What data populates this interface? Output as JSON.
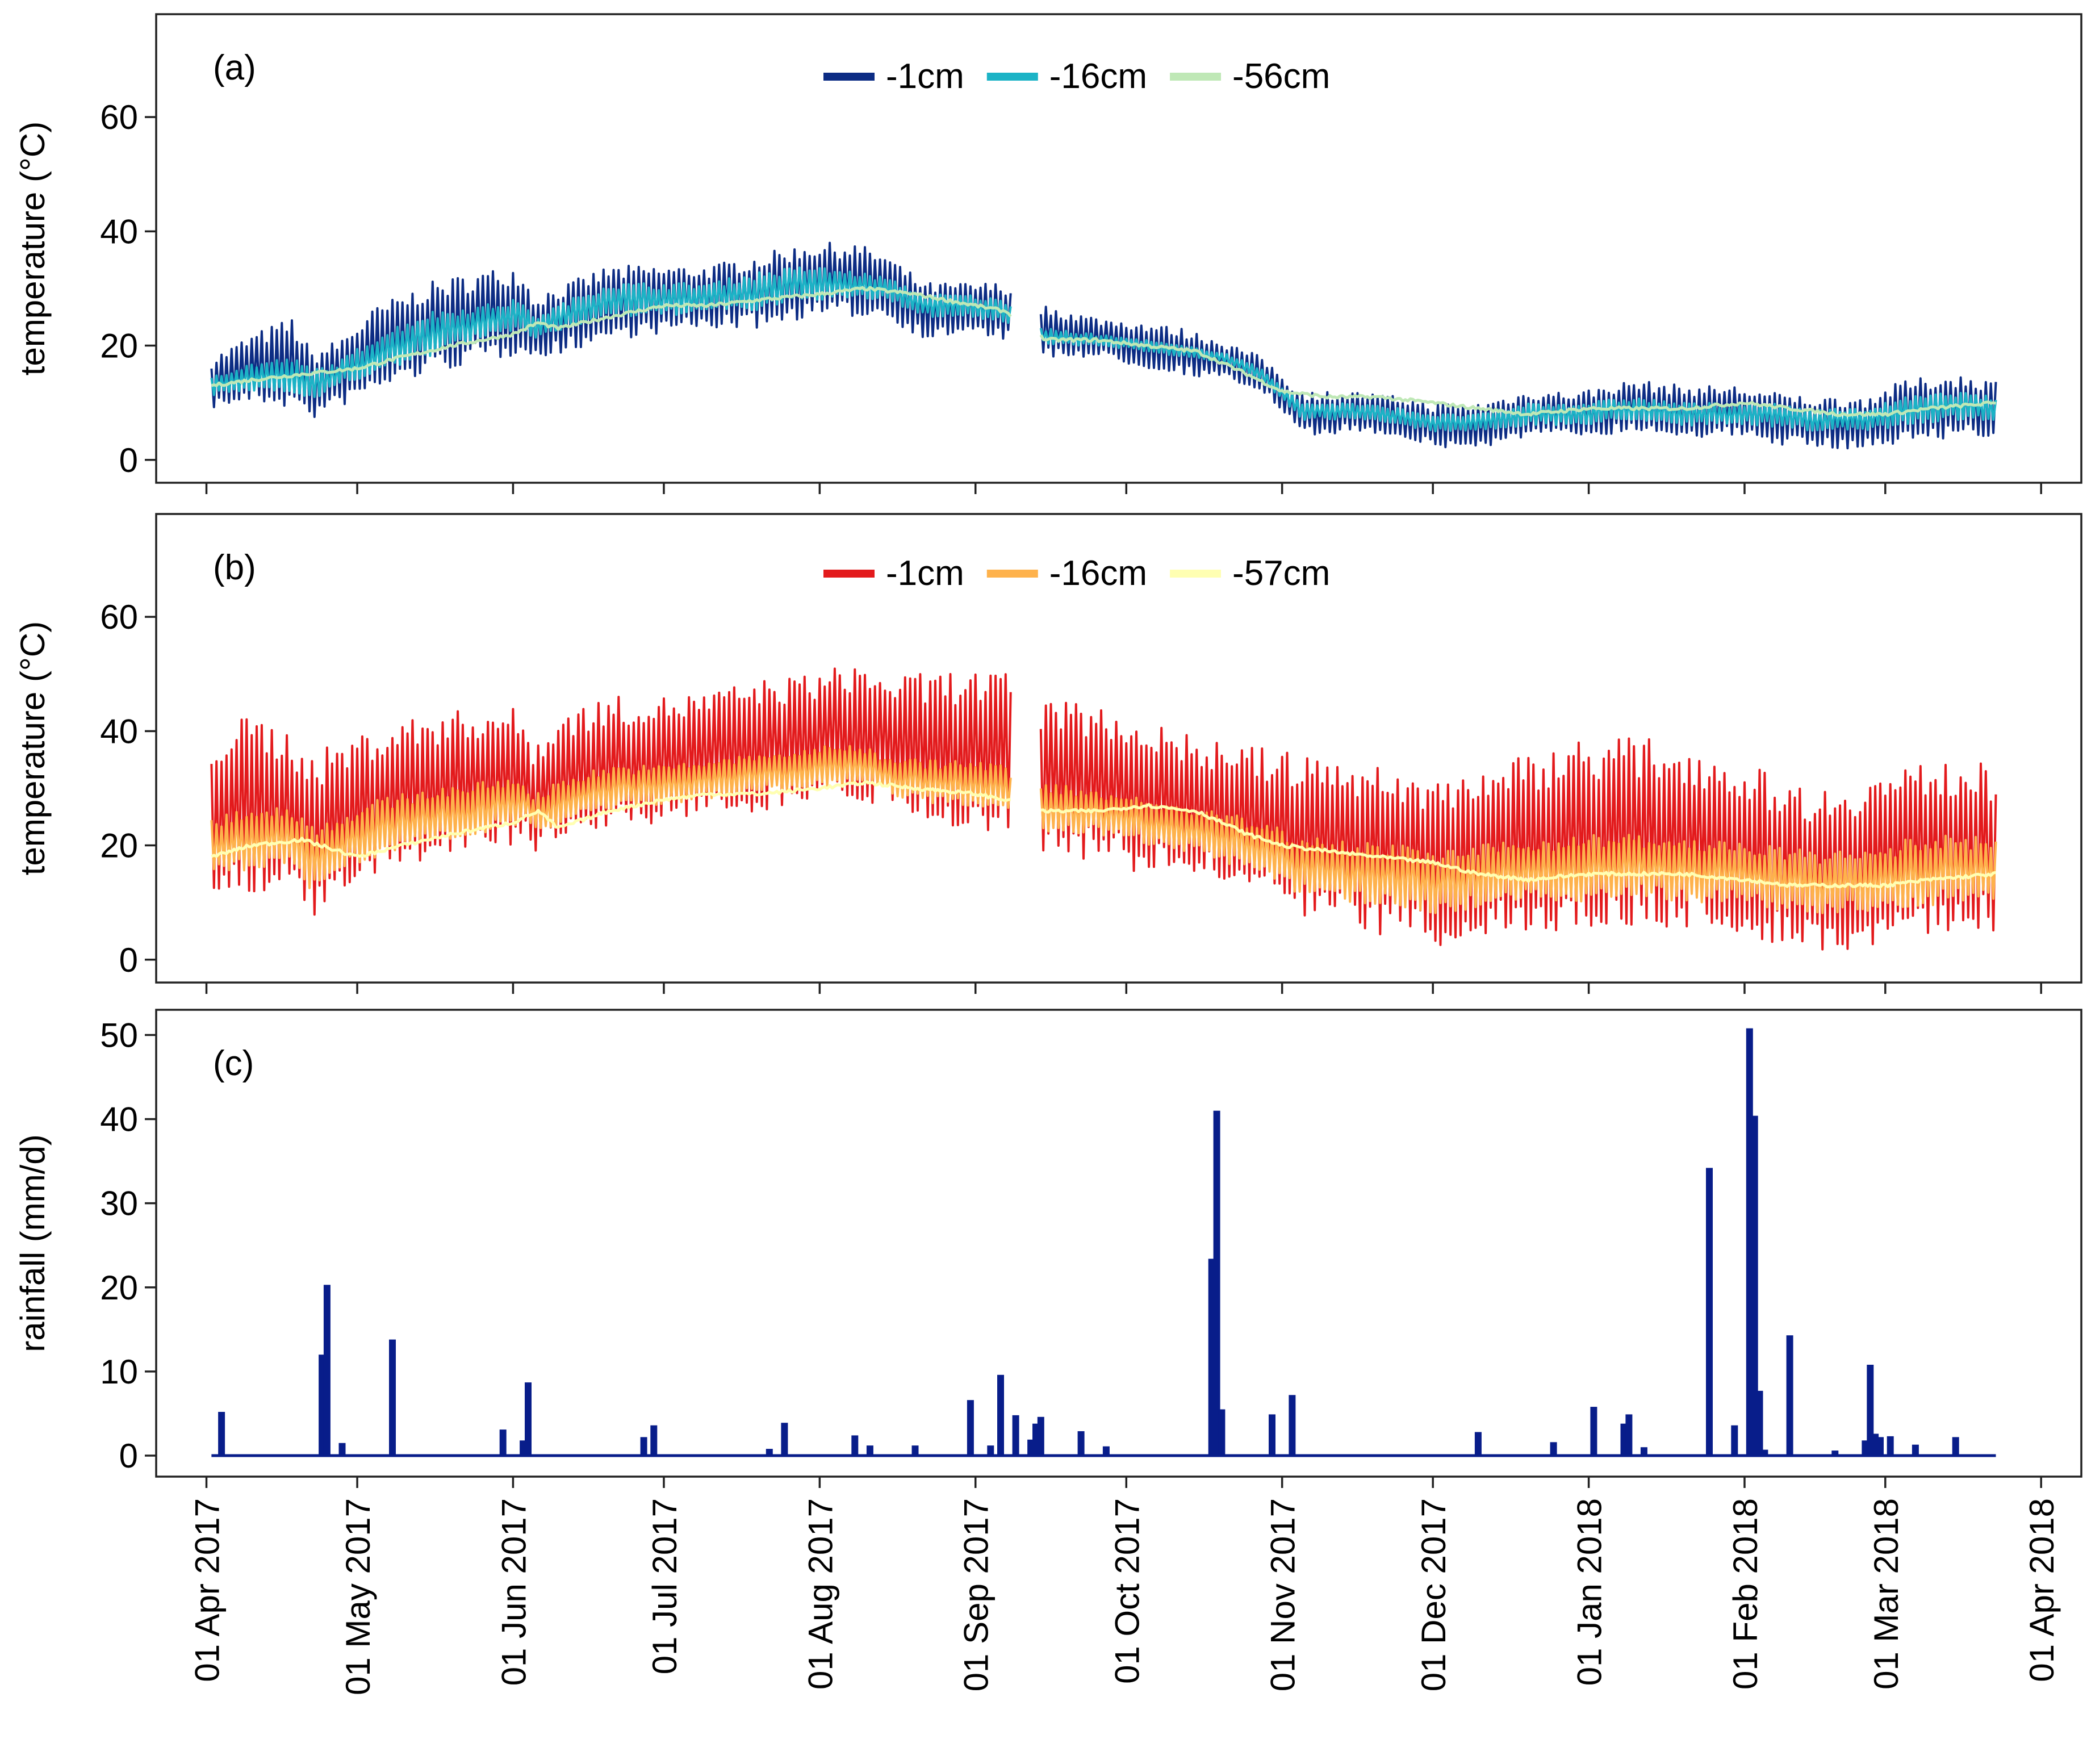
{
  "chart_data": [
    {
      "type": "line",
      "panel_label": "(a)",
      "ylabel": "temperature (°C)",
      "ylim": [
        -4,
        78
      ],
      "yticks": [
        0,
        20,
        40,
        60
      ],
      "legend_position": "top-center",
      "gap": [
        "2017-09-08",
        "2017-09-14"
      ],
      "series": [
        {
          "name": "-1cm",
          "color": "#0c2c84",
          "kind": "band",
          "x": [
            "2017-04-02",
            "2017-04-10",
            "2017-04-18",
            "2017-04-22",
            "2017-04-27",
            "2017-05-05",
            "2017-05-15",
            "2017-05-25",
            "2017-06-01",
            "2017-06-03",
            "2017-06-05",
            "2017-06-12",
            "2017-06-20",
            "2017-06-30",
            "2017-07-10",
            "2017-07-20",
            "2017-07-30",
            "2017-08-08",
            "2017-08-14",
            "2017-08-22",
            "2017-08-30",
            "2017-09-07",
            "2017-09-15",
            "2017-09-25",
            "2017-10-05",
            "2017-10-12",
            "2017-10-20",
            "2017-10-28",
            "2017-11-05",
            "2017-11-15",
            "2017-11-25",
            "2017-12-01",
            "2017-12-10",
            "2017-12-20",
            "2017-12-30",
            "2018-01-10",
            "2018-01-20",
            "2018-01-30",
            "2018-02-05",
            "2018-02-15",
            "2018-02-25",
            "2018-03-05",
            "2018-03-15",
            "2018-03-23"
          ],
          "low": [
            9,
            10,
            9,
            7,
            9,
            12,
            15,
            17,
            18,
            20,
            17,
            19,
            21,
            22,
            23,
            23,
            25,
            25,
            25,
            21,
            22,
            21,
            18,
            18,
            16,
            15,
            14,
            12,
            4,
            5,
            4,
            2,
            2,
            4,
            4,
            5,
            4,
            4,
            3,
            2,
            2,
            3,
            4,
            4
          ],
          "high": [
            18,
            22,
            25,
            19,
            21,
            27,
            31,
            33,
            34,
            33,
            29,
            31,
            34,
            34,
            34,
            36,
            38,
            38,
            36,
            31,
            31,
            31,
            27,
            25,
            24,
            23,
            21,
            18,
            12,
            12,
            11,
            10,
            10,
            12,
            12,
            14,
            13,
            13,
            12,
            11,
            11,
            14,
            15,
            14
          ]
        },
        {
          "name": "-16cm",
          "color": "#1cb3c6",
          "kind": "band",
          "x": [
            "2017-04-02",
            "2017-04-10",
            "2017-04-18",
            "2017-04-22",
            "2017-04-27",
            "2017-05-05",
            "2017-05-15",
            "2017-05-25",
            "2017-06-01",
            "2017-06-03",
            "2017-06-05",
            "2017-06-12",
            "2017-06-20",
            "2017-06-30",
            "2017-07-10",
            "2017-07-20",
            "2017-07-30",
            "2017-08-08",
            "2017-08-14",
            "2017-08-22",
            "2017-08-30",
            "2017-09-07",
            "2017-09-15",
            "2017-09-25",
            "2017-10-05",
            "2017-10-12",
            "2017-10-20",
            "2017-10-28",
            "2017-11-05",
            "2017-11-15",
            "2017-11-25",
            "2017-12-01",
            "2017-12-10",
            "2017-12-20",
            "2017-12-30",
            "2018-01-10",
            "2018-01-20",
            "2018-01-30",
            "2018-02-05",
            "2018-02-15",
            "2018-02-25",
            "2018-03-05",
            "2018-03-15",
            "2018-03-23"
          ],
          "low": [
            11,
            12,
            12,
            10,
            13,
            15,
            18,
            21,
            22,
            23,
            21,
            23,
            25,
            25,
            26,
            26,
            28,
            28,
            28,
            25,
            25,
            24,
            20,
            20,
            19,
            18,
            17,
            14,
            7,
            7,
            6,
            5,
            5,
            6,
            6,
            7,
            6,
            6,
            6,
            5,
            5,
            6,
            7,
            7
          ],
          "high": [
            15,
            17,
            18,
            16,
            17,
            22,
            26,
            27,
            28,
            28,
            25,
            28,
            31,
            31,
            31,
            33,
            34,
            33,
            32,
            29,
            29,
            28,
            23,
            22,
            21,
            20,
            19,
            16,
            10,
            10,
            9,
            8,
            8,
            10,
            10,
            11,
            10,
            10,
            10,
            9,
            9,
            11,
            12,
            11
          ]
        },
        {
          "name": "-56cm",
          "color": "#bfe8b6",
          "kind": "line",
          "x": [
            "2017-04-02",
            "2017-04-10",
            "2017-04-20",
            "2017-05-01",
            "2017-05-10",
            "2017-05-20",
            "2017-06-01",
            "2017-06-06",
            "2017-06-10",
            "2017-06-20",
            "2017-07-01",
            "2017-07-10",
            "2017-07-20",
            "2017-08-01",
            "2017-08-10",
            "2017-08-20",
            "2017-09-01",
            "2017-09-07",
            "2017-09-15",
            "2017-09-25",
            "2017-10-05",
            "2017-10-15",
            "2017-10-25",
            "2017-11-01",
            "2017-11-10",
            "2017-11-20",
            "2017-12-01",
            "2017-12-10",
            "2017-12-20",
            "2018-01-01",
            "2018-01-10",
            "2018-01-20",
            "2018-02-01",
            "2018-02-10",
            "2018-02-20",
            "2018-03-01",
            "2018-03-10",
            "2018-03-23"
          ],
          "y": [
            13,
            14,
            15,
            16,
            18,
            20,
            22,
            24,
            23,
            25,
            27,
            27,
            28,
            29,
            30,
            29,
            27,
            26,
            21,
            21,
            20,
            19,
            15,
            12,
            11,
            11,
            10,
            9,
            8,
            9,
            9,
            9,
            10,
            9,
            8,
            8,
            9,
            10
          ]
        }
      ]
    },
    {
      "type": "line",
      "panel_label": "(b)",
      "ylabel": "temperature (°C)",
      "ylim": [
        -4,
        78
      ],
      "yticks": [
        0,
        20,
        40,
        60
      ],
      "legend_position": "top-center",
      "gap": [
        "2017-09-08",
        "2017-09-14"
      ],
      "series": [
        {
          "name": "-1cm",
          "color": "#e31a1c",
          "kind": "band",
          "x": [
            "2017-04-02",
            "2017-04-10",
            "2017-04-18",
            "2017-04-22",
            "2017-04-27",
            "2017-05-05",
            "2017-05-15",
            "2017-05-25",
            "2017-06-01",
            "2017-06-03",
            "2017-06-05",
            "2017-06-12",
            "2017-06-20",
            "2017-06-30",
            "2017-07-10",
            "2017-07-20",
            "2017-07-30",
            "2017-08-08",
            "2017-08-14",
            "2017-08-22",
            "2017-08-30",
            "2017-09-07",
            "2017-09-15",
            "2017-09-25",
            "2017-10-05",
            "2017-10-12",
            "2017-10-20",
            "2017-10-28",
            "2017-11-05",
            "2017-11-15",
            "2017-11-25",
            "2017-12-01",
            "2017-12-10",
            "2017-12-20",
            "2017-12-30",
            "2018-01-10",
            "2018-01-20",
            "2018-01-30",
            "2018-02-05",
            "2018-02-15",
            "2018-02-25",
            "2018-03-05",
            "2018-03-15",
            "2018-03-23"
          ],
          "low": [
            10,
            12,
            11,
            7,
            10,
            14,
            17,
            19,
            20,
            22,
            19,
            20,
            23,
            24,
            25,
            26,
            28,
            28,
            27,
            23,
            23,
            22,
            18,
            17,
            15,
            14,
            13,
            11,
            6,
            5,
            4,
            2,
            3,
            5,
            5,
            6,
            5,
            5,
            3,
            1,
            2,
            4,
            5,
            5
          ],
          "high": [
            40,
            43,
            40,
            36,
            38,
            41,
            43,
            44,
            44,
            42,
            38,
            44,
            46,
            46,
            47,
            49,
            50,
            52,
            50,
            50,
            51,
            50,
            46,
            45,
            42,
            40,
            38,
            37,
            36,
            35,
            33,
            32,
            34,
            36,
            39,
            39,
            38,
            35,
            33,
            30,
            32,
            34,
            35,
            34
          ]
        },
        {
          "name": "-16cm",
          "color": "#feb24c",
          "kind": "band",
          "x": [
            "2017-04-02",
            "2017-04-10",
            "2017-04-18",
            "2017-04-22",
            "2017-04-27",
            "2017-05-05",
            "2017-05-15",
            "2017-05-25",
            "2017-06-01",
            "2017-06-03",
            "2017-06-05",
            "2017-06-12",
            "2017-06-20",
            "2017-06-30",
            "2017-07-10",
            "2017-07-20",
            "2017-07-30",
            "2017-08-08",
            "2017-08-14",
            "2017-08-22",
            "2017-08-30",
            "2017-09-07",
            "2017-09-15",
            "2017-09-25",
            "2017-10-05",
            "2017-10-12",
            "2017-10-20",
            "2017-10-28",
            "2017-11-05",
            "2017-11-15",
            "2017-11-25",
            "2017-12-01",
            "2017-12-10",
            "2017-12-20",
            "2017-12-30",
            "2018-01-10",
            "2018-01-20",
            "2018-01-30",
            "2018-02-05",
            "2018-02-15",
            "2018-02-25",
            "2018-03-05",
            "2018-03-15",
            "2018-03-23"
          ],
          "low": [
            14,
            16,
            16,
            12,
            15,
            18,
            20,
            22,
            23,
            25,
            22,
            24,
            26,
            27,
            28,
            29,
            30,
            30,
            29,
            27,
            27,
            26,
            22,
            22,
            20,
            19,
            17,
            15,
            11,
            10,
            9,
            8,
            9,
            10,
            10,
            11,
            10,
            10,
            9,
            8,
            8,
            9,
            10,
            10
          ],
          "high": [
            25,
            27,
            27,
            24,
            25,
            28,
            30,
            31,
            32,
            31,
            29,
            32,
            34,
            34,
            35,
            36,
            37,
            38,
            36,
            35,
            35,
            34,
            31,
            30,
            28,
            27,
            26,
            24,
            22,
            21,
            20,
            19,
            20,
            21,
            22,
            22,
            21,
            21,
            20,
            19,
            19,
            21,
            22,
            21
          ]
        },
        {
          "name": "-57cm",
          "color": "#ffffb2",
          "kind": "line",
          "x": [
            "2017-04-02",
            "2017-04-10",
            "2017-04-20",
            "2017-05-01",
            "2017-05-10",
            "2017-05-20",
            "2017-06-01",
            "2017-06-06",
            "2017-06-10",
            "2017-06-20",
            "2017-07-01",
            "2017-07-10",
            "2017-07-20",
            "2017-08-01",
            "2017-08-10",
            "2017-08-20",
            "2017-09-01",
            "2017-09-07",
            "2017-09-15",
            "2017-09-25",
            "2017-10-05",
            "2017-10-15",
            "2017-10-25",
            "2017-11-01",
            "2017-11-10",
            "2017-11-20",
            "2017-12-01",
            "2017-12-10",
            "2017-12-20",
            "2018-01-01",
            "2018-01-10",
            "2018-01-20",
            "2018-02-01",
            "2018-02-10",
            "2018-02-20",
            "2018-03-01",
            "2018-03-10",
            "2018-03-23"
          ],
          "y": [
            18,
            20,
            21,
            18,
            20,
            22,
            24,
            26,
            23,
            26,
            28,
            29,
            29,
            30,
            31,
            30,
            29,
            28,
            26,
            26,
            27,
            26,
            22,
            20,
            19,
            18,
            17,
            15,
            14,
            15,
            15,
            15,
            14,
            13,
            13,
            13,
            14,
            15
          ]
        }
      ]
    },
    {
      "type": "bar",
      "panel_label": "(c)",
      "ylabel": "rainfall (mm/d)",
      "ylim": [
        -2.5,
        53
      ],
      "yticks": [
        0,
        10,
        20,
        30,
        40,
        50
      ],
      "color": "#081d8a",
      "xticks": [
        "01 Apr 2017",
        "01 May 2017",
        "01 Jun 2017",
        "01 Jul 2017",
        "01 Aug 2017",
        "01 Sep 2017",
        "01 Oct 2017",
        "01 Nov 2017",
        "01 Dec 2017",
        "01 Jan 2018",
        "01 Feb 2018",
        "01 Mar 2018",
        "01 Apr 2018"
      ],
      "x": [
        "2017-04-04",
        "2017-04-24",
        "2017-04-25",
        "2017-04-28",
        "2017-05-08",
        "2017-05-30",
        "2017-06-03",
        "2017-06-04",
        "2017-06-27",
        "2017-06-29",
        "2017-07-22",
        "2017-07-25",
        "2017-08-08",
        "2017-08-11",
        "2017-08-20",
        "2017-08-31",
        "2017-09-04",
        "2017-09-06",
        "2017-09-09",
        "2017-09-12",
        "2017-09-13",
        "2017-09-14",
        "2017-09-22",
        "2017-09-27",
        "2017-10-18",
        "2017-10-19",
        "2017-10-20",
        "2017-10-30",
        "2017-11-03",
        "2017-12-10",
        "2017-12-25",
        "2018-01-02",
        "2018-01-08",
        "2018-01-09",
        "2018-01-12",
        "2018-01-25",
        "2018-01-30",
        "2018-02-02",
        "2018-02-03",
        "2018-02-04",
        "2018-02-05",
        "2018-02-10",
        "2018-02-19",
        "2018-02-25",
        "2018-02-26",
        "2018-02-27",
        "2018-02-28",
        "2018-03-02",
        "2018-03-07",
        "2018-03-15"
      ],
      "values": [
        5.2,
        12,
        20.3,
        1.5,
        13.8,
        3.1,
        1.8,
        8.7,
        2.2,
        3.6,
        0.8,
        3.9,
        2.4,
        1.2,
        1.2,
        6.6,
        1.2,
        9.6,
        4.8,
        1.9,
        3.8,
        4.6,
        2.9,
        1.1,
        23.4,
        41,
        5.5,
        4.9,
        7.2,
        2.8,
        1.6,
        5.8,
        3.8,
        4.9,
        1.0,
        34.2,
        3.6,
        50.8,
        40.4,
        7.7,
        0.7,
        14.3,
        0.6,
        1.8,
        10.8,
        2.6,
        2.2,
        2.3,
        1.3,
        2.2
      ]
    }
  ]
}
